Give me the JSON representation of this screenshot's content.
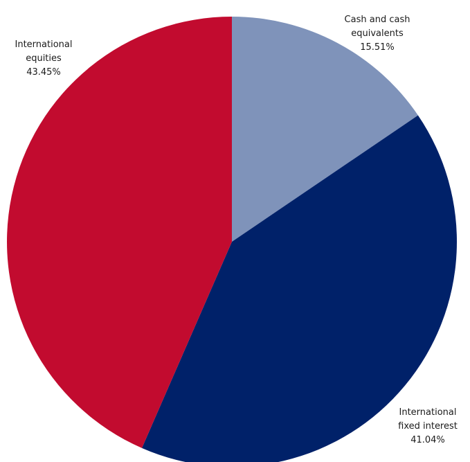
{
  "chart_data": {
    "type": "pie",
    "title": "",
    "start_angle_deg": 0,
    "direction": "clockwise",
    "slices": [
      {
        "label_lines": [
          "Cash and cash",
          "equivalents"
        ],
        "value": 15.51,
        "value_label": "15.51%",
        "color": "#7F93BA"
      },
      {
        "label_lines": [
          "International",
          "fixed interest"
        ],
        "value": 41.04,
        "value_label": "41.04%",
        "color": "#002169"
      },
      {
        "label_lines": [
          "International",
          "equities"
        ],
        "value": 43.45,
        "value_label": "43.45%",
        "color": "#C20B2F"
      }
    ],
    "legend": "none",
    "labels": "outside"
  }
}
